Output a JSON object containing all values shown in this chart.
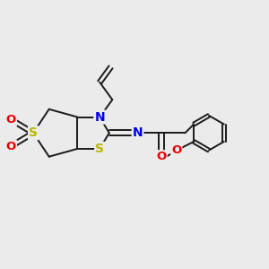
{
  "background_color": "#ebebeb",
  "bond_color": "#1a1a1a",
  "atom_colors": {
    "S": "#b8b800",
    "N": "#0000ee",
    "O": "#ee0000",
    "C": "#1a1a1a"
  },
  "bond_width": 1.4,
  "xlim": [
    0,
    8.5
  ],
  "ylim": [
    0.0,
    6.5
  ]
}
